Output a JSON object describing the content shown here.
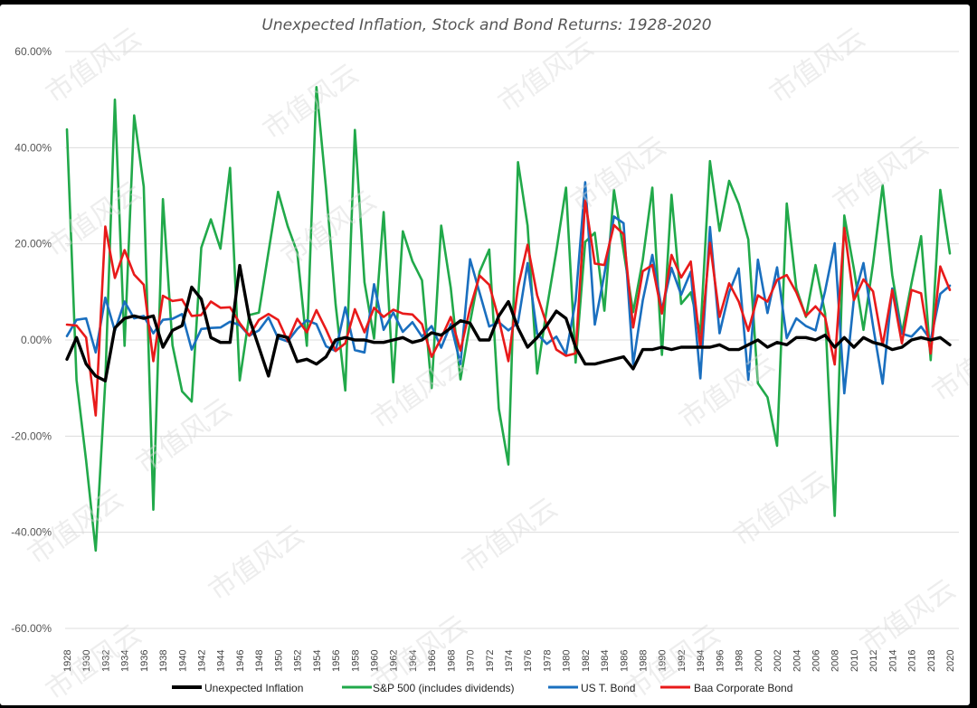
{
  "chart_data": {
    "type": "line",
    "title": "Unexpected Inflation, Stock and Bond Returns: 1928-2020",
    "xlabel": "",
    "ylabel": "",
    "ylim": [
      -60,
      60
    ],
    "y_ticks": [
      "60.00%",
      "40.00%",
      "20.00%",
      "0.00%",
      "-20.00%",
      "-40.00%",
      "-60.00%"
    ],
    "y_tick_values": [
      60,
      40,
      20,
      0,
      -20,
      -40,
      -60
    ],
    "grid": true,
    "legend_position": "bottom",
    "x": [
      1928,
      1929,
      1930,
      1931,
      1932,
      1933,
      1934,
      1935,
      1936,
      1937,
      1938,
      1939,
      1940,
      1941,
      1942,
      1943,
      1944,
      1945,
      1946,
      1947,
      1948,
      1949,
      1950,
      1951,
      1952,
      1953,
      1954,
      1955,
      1956,
      1957,
      1958,
      1959,
      1960,
      1961,
      1962,
      1963,
      1964,
      1965,
      1966,
      1967,
      1968,
      1969,
      1970,
      1971,
      1972,
      1973,
      1974,
      1975,
      1976,
      1977,
      1978,
      1979,
      1980,
      1981,
      1982,
      1983,
      1984,
      1985,
      1986,
      1987,
      1988,
      1989,
      1990,
      1991,
      1992,
      1993,
      1994,
      1995,
      1996,
      1997,
      1998,
      1999,
      2000,
      2001,
      2002,
      2003,
      2004,
      2005,
      2006,
      2007,
      2008,
      2009,
      2010,
      2011,
      2012,
      2013,
      2014,
      2015,
      2016,
      2017,
      2018,
      2019,
      2020
    ],
    "x_tick_labels": [
      "1928",
      "1930",
      "1932",
      "1934",
      "1936",
      "1938",
      "1940",
      "1942",
      "1944",
      "1946",
      "1948",
      "1950",
      "1952",
      "1954",
      "1956",
      "1958",
      "1960",
      "1962",
      "1964",
      "1966",
      "1968",
      "1970",
      "1972",
      "1974",
      "1976",
      "1978",
      "1980",
      "1982",
      "1984",
      "1986",
      "1988",
      "1990",
      "1992",
      "1994",
      "1996",
      "1998",
      "2000",
      "2002",
      "2004",
      "2006",
      "2008",
      "2010",
      "2012",
      "2014",
      "2016",
      "2018",
      "2020"
    ],
    "series": [
      {
        "name": "Unexpected Inflation",
        "color": "#000000",
        "values": [
          -4,
          0.5,
          -5,
          -7.5,
          -8.5,
          2.5,
          4.5,
          5,
          4.5,
          5,
          -1.5,
          2,
          3,
          11,
          8.5,
          0.5,
          -0.5,
          -0.5,
          15.5,
          4.5,
          -1.5,
          -7.5,
          1,
          0.5,
          -4.5,
          -4,
          -5,
          -3.5,
          0,
          0.5,
          0,
          0,
          -0.5,
          -0.5,
          0,
          0.5,
          -0.5,
          0,
          1.5,
          1,
          2.5,
          4,
          3.5,
          0,
          0,
          5,
          8,
          2.5,
          -1.5,
          0.5,
          3,
          6,
          4.5,
          -1.5,
          -5,
          -5,
          -4.5,
          -4,
          -3.5,
          -6,
          -2,
          -2,
          -1.5,
          -2,
          -1.5,
          -1.5,
          -1.5,
          -1.5,
          -1,
          -2,
          -2,
          -1,
          0,
          -1.5,
          -0.5,
          -1,
          0.5,
          0.5,
          0,
          1,
          -1.5,
          0.5,
          -1.5,
          0.5,
          -0.5,
          -1,
          -2,
          -1.5,
          0,
          0.5,
          0,
          0.5,
          -1
        ]
      },
      {
        "name": "S&P 500 (includes dividends)",
        "color": "#21a94a",
        "values": [
          43.8,
          -8.3,
          -25.1,
          -43.8,
          -8.6,
          50,
          -1.2,
          46.7,
          31.9,
          -35.3,
          29.3,
          -1.1,
          -10.7,
          -12.8,
          19.2,
          25.1,
          19,
          35.8,
          -8.4,
          5.2,
          5.7,
          18.3,
          30.8,
          23.7,
          18.2,
          -1.2,
          52.6,
          31.6,
          7.4,
          -10.5,
          43.7,
          12,
          0.3,
          26.6,
          -8.8,
          22.6,
          16.4,
          12.4,
          -10,
          23.8,
          10.8,
          -8.2,
          3.6,
          14.2,
          18.8,
          -14.3,
          -25.9,
          37,
          23.8,
          -7,
          6.5,
          18.5,
          31.7,
          -4.7,
          20.4,
          22.3,
          6.1,
          31.2,
          18.5,
          5.8,
          16.6,
          31.7,
          -3.1,
          30.2,
          7.5,
          9.9,
          1.3,
          37.2,
          22.7,
          33.1,
          28.3,
          20.9,
          -9,
          -11.9,
          -22,
          28.4,
          10.7,
          4.8,
          15.6,
          5.5,
          -36.6,
          25.9,
          14.8,
          2.1,
          15.9,
          32.2,
          13.5,
          1.4,
          11.8,
          21.6,
          -4.2,
          31.2,
          18
        ]
      },
      {
        "name": "US T. Bond",
        "color": "#1a6fbf",
        "values": [
          0.8,
          4.2,
          4.5,
          -2.6,
          8.8,
          1.9,
          8,
          4.5,
          5,
          1.4,
          4.2,
          4.4,
          5.4,
          -2,
          2.3,
          2.5,
          2.6,
          3.8,
          3.1,
          0.9,
          2,
          4.7,
          0.4,
          -0.3,
          2.3,
          4.1,
          3.3,
          -1.3,
          -2.3,
          6.8,
          -2.1,
          -2.6,
          11.6,
          2.1,
          5.7,
          1.7,
          3.7,
          0.7,
          2.9,
          -1.6,
          3.3,
          -5,
          16.8,
          9.8,
          2.8,
          3.7,
          2,
          3.6,
          16,
          1.3,
          -0.8,
          0.7,
          -3,
          8.2,
          32.8,
          3.2,
          13.7,
          25.7,
          24.3,
          -5,
          8.2,
          17.7,
          6.2,
          15,
          9.4,
          14.2,
          -8,
          23.5,
          1.4,
          9.9,
          14.9,
          -8.3,
          16.7,
          5.6,
          15.1,
          0.4,
          4.5,
          2.9,
          2,
          10.2,
          20.1,
          -11.1,
          8.5,
          16,
          2.9,
          -9.1,
          10.7,
          1.3,
          0.7,
          2.8,
          0,
          9.6,
          11.3
        ]
      },
      {
        "name": "Baa Corporate Bond",
        "color": "#e81a1a",
        "values": [
          3.2,
          3,
          0.5,
          -15.7,
          23.6,
          12.9,
          18.7,
          13.6,
          11.5,
          -4.4,
          9.2,
          8.1,
          8.4,
          5,
          5.2,
          8,
          6.7,
          6.8,
          3.5,
          0.9,
          4.2,
          5.4,
          4.2,
          -0.2,
          4.4,
          1.6,
          6.2,
          2.2,
          -2.3,
          -0.7,
          6.4,
          1.6,
          6.7,
          4.8,
          6.3,
          5.5,
          5.3,
          3.3,
          -3.5,
          0.4,
          4.8,
          -2.2,
          6.6,
          13.4,
          11.5,
          4.3,
          -4.4,
          11,
          19.8,
          9.3,
          3.2,
          -2,
          -3.3,
          -2.8,
          29,
          15.9,
          15.6,
          23.9,
          22,
          2.6,
          14.3,
          15.6,
          5.5,
          17.7,
          13,
          16.3,
          -1.5,
          20.2,
          4.8,
          11.8,
          8,
          1.9,
          9.3,
          8,
          12.5,
          13.5,
          9.9,
          5,
          7,
          4.7,
          -5.1,
          23.3,
          8.3,
          12.6,
          10.1,
          -1.1,
          10.4,
          -0.7,
          10.4,
          9.7,
          -2.8,
          15.3,
          10.4
        ]
      }
    ]
  },
  "watermark": "市值风云"
}
